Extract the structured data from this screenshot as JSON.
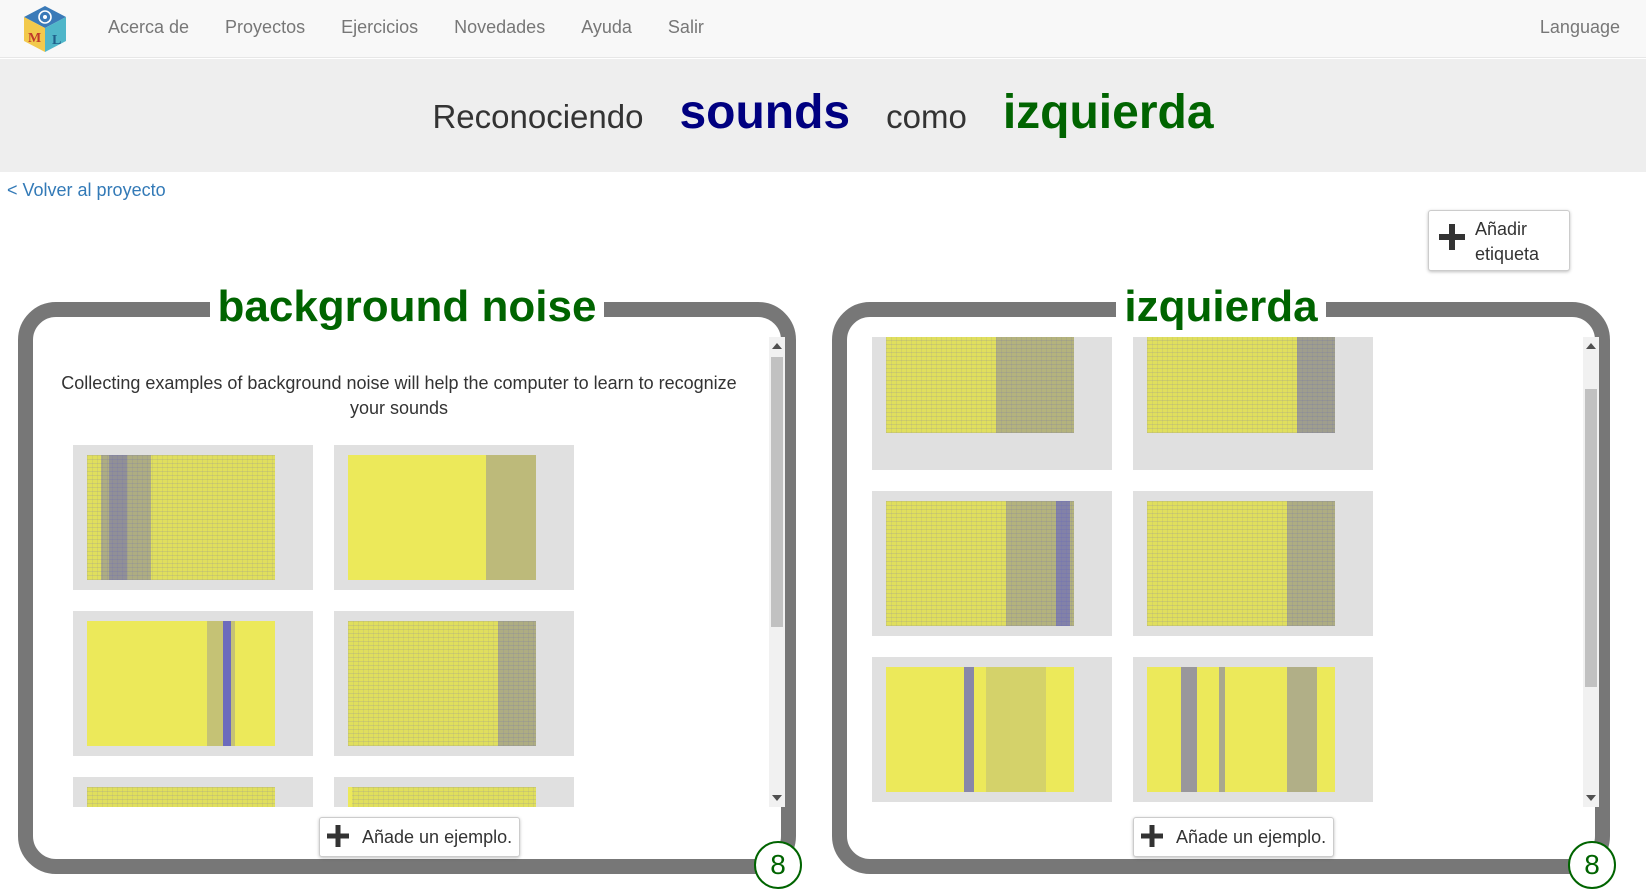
{
  "nav": {
    "links": [
      "Acerca de",
      "Proyectos",
      "Ejercicios",
      "Novedades",
      "Ayuda",
      "Salir"
    ],
    "language": "Language"
  },
  "title": {
    "prefix": "Reconociendo",
    "project": "sounds",
    "middle": "como",
    "label": "izquierda"
  },
  "back_link": "< Volver al proyecto",
  "add_label_button": {
    "line1": "Añadir",
    "line2": "etiqueta"
  },
  "buckets": [
    {
      "name": "background noise",
      "intro": "Collecting examples of background noise will help the computer to learn to recognize your sounds",
      "add_example": "Añade un ejemplo.",
      "count": "8"
    },
    {
      "name": "izquierda",
      "add_example": "Añade un ejemplo.",
      "count": "8"
    }
  ],
  "colors": {
    "label_green": "#006400",
    "project_navy": "#000080",
    "spectrogram_yellow": "#e0df5d",
    "spectrogram_blue": "#4a4acb"
  }
}
